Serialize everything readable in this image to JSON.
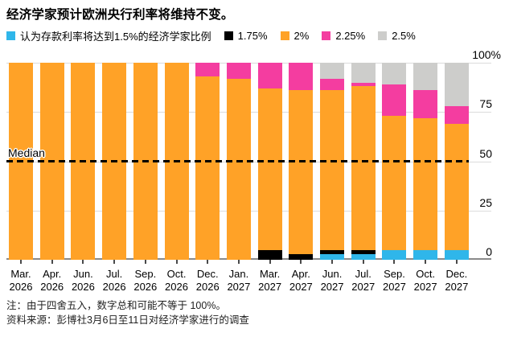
{
  "title": "经济学家预计欧洲央行利率将维持不变。",
  "legend": [
    {
      "key": "rate-1-5",
      "label": "认为存款利率将达到1.5%的经济学家比例",
      "color": "#2FB6EA"
    },
    {
      "key": "rate-1-75",
      "label": "1.75%",
      "color": "#000000"
    },
    {
      "key": "rate-2",
      "label": "2%",
      "color": "#FFA227"
    },
    {
      "key": "rate-2-25",
      "label": "2.25%",
      "color": "#F43DA0"
    },
    {
      "key": "rate-2-5",
      "label": "2.5%",
      "color": "#CDCDCB"
    }
  ],
  "chart_data": {
    "type": "bar",
    "stacked": true,
    "title": "经济学家预计欧洲央行利率将维持不变。",
    "unit": "%",
    "categories": [
      "Mar. 2026",
      "Apr. 2026",
      "Jun. 2026",
      "Jul. 2026",
      "Sep. 2026",
      "Oct. 2026",
      "Dec. 2026",
      "Jan. 2027",
      "Mar. 2027",
      "Apr. 2027",
      "Jun. 2027",
      "Jul. 2027",
      "Sep. 2027",
      "Oct. 2027",
      "Dec. 2027"
    ],
    "series": [
      {
        "key": "rate-1-5",
        "name": "认为存款利率将达到1.5%的经济学家比例",
        "color": "#2FB6EA",
        "values": [
          0,
          0,
          0,
          0,
          0,
          0,
          0,
          0,
          0,
          0,
          3,
          3,
          5,
          5,
          5
        ]
      },
      {
        "key": "rate-1-75",
        "name": "1.75%",
        "color": "#000000",
        "values": [
          0,
          0,
          0,
          0,
          0,
          0,
          0,
          0,
          5,
          3,
          2,
          2,
          0,
          0,
          0
        ]
      },
      {
        "key": "rate-2",
        "name": "2%",
        "color": "#FFA227",
        "values": [
          100,
          100,
          100,
          100,
          100,
          100,
          93,
          92,
          82,
          83,
          81,
          83,
          68,
          67,
          64
        ]
      },
      {
        "key": "rate-2-25",
        "name": "2.25%",
        "color": "#F43DA0",
        "values": [
          0,
          0,
          0,
          0,
          0,
          0,
          7,
          8,
          13,
          14,
          6,
          2,
          16,
          14,
          9
        ]
      },
      {
        "key": "rate-2-5",
        "name": "2.5%",
        "color": "#CDCDCB",
        "values": [
          0,
          0,
          0,
          0,
          0,
          0,
          0,
          0,
          0,
          0,
          8,
          10,
          11,
          14,
          22
        ]
      }
    ],
    "ylim": [
      0,
      100
    ],
    "yticks": [
      {
        "value": 0,
        "label": "0"
      },
      {
        "value": 25,
        "label": "25"
      },
      {
        "value": 50,
        "label": "50"
      },
      {
        "value": 75,
        "label": "75"
      },
      {
        "value": 100,
        "label": "100%"
      }
    ],
    "grid": "horizontal",
    "legend_position": "top",
    "median_line": {
      "label": "Median",
      "value": 50
    }
  },
  "footer": {
    "note": "注：由于四舍五入，数字总和可能不等于 100%。",
    "source": "资料来源：彭博社3月6日至11日对经济学家进行的调查"
  },
  "colors": {
    "gridline": "#DCDCDC",
    "axis": "#8A8A8A",
    "tick": "#4A4A4A",
    "median": "#000000",
    "background": "#FFFFFF"
  }
}
